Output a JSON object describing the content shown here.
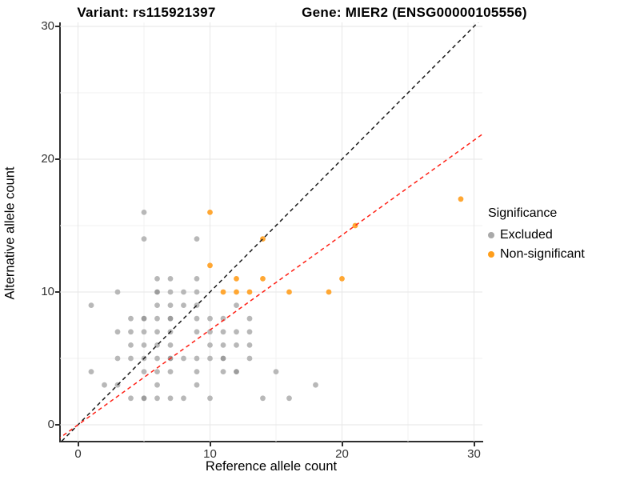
{
  "titles": {
    "left": "Variant: rs115921397",
    "right": "Gene: MIER2 (ENSG00000105556)"
  },
  "chart_data": {
    "type": "scatter",
    "xlabel": "Reference allele count",
    "ylabel": "Alternative allele count",
    "x_ticks": [
      0,
      10,
      20,
      30
    ],
    "x_tick_labels": [
      "0",
      "10",
      "20",
      "30"
    ],
    "y_ticks": [
      0,
      10,
      20,
      30
    ],
    "y_tick_labels": [
      "0",
      "10",
      "20",
      "30"
    ],
    "x_minor_ticks": [
      5,
      15,
      25
    ],
    "y_minor_ticks": [
      5,
      15,
      25
    ],
    "xlim": [
      -1.4,
      30.6
    ],
    "ylim": [
      -1.3,
      30.4
    ],
    "grid": true,
    "legend": {
      "title": "Significance",
      "position": "right",
      "items": [
        {
          "label": "Excluded",
          "color": "#a9a9a9"
        },
        {
          "label": "Non-significant",
          "color": "#ff9e1b"
        }
      ]
    },
    "lines": [
      {
        "name": "identity-line",
        "slope": 1,
        "intercept": 0,
        "style": "dashed",
        "color": "#1a1a1a"
      },
      {
        "name": "expected-ratio-line",
        "slope": 0.7143,
        "intercept": 0,
        "style": "dashed",
        "color": "#ff2015"
      }
    ],
    "series": [
      {
        "name": "Excluded",
        "color": "#b8b8b8",
        "overplot_color": "#9d9d9d",
        "points": [
          [
            1,
            4
          ],
          [
            1,
            9
          ],
          [
            2,
            3
          ],
          [
            3,
            3
          ],
          [
            3,
            5
          ],
          [
            3,
            7
          ],
          [
            3,
            10
          ],
          [
            4,
            2
          ],
          [
            4,
            5
          ],
          [
            4,
            6
          ],
          [
            4,
            7
          ],
          [
            4,
            8
          ],
          [
            5,
            2
          ],
          [
            5,
            4
          ],
          [
            5,
            5
          ],
          [
            5,
            6
          ],
          [
            5,
            7
          ],
          [
            5,
            8
          ],
          [
            5,
            14
          ],
          [
            5,
            16
          ],
          [
            6,
            2
          ],
          [
            6,
            3
          ],
          [
            6,
            4
          ],
          [
            6,
            5
          ],
          [
            6,
            6
          ],
          [
            6,
            7
          ],
          [
            6,
            8
          ],
          [
            6,
            9
          ],
          [
            6,
            10
          ],
          [
            6,
            11
          ],
          [
            7,
            2
          ],
          [
            7,
            4
          ],
          [
            7,
            5
          ],
          [
            7,
            6
          ],
          [
            7,
            7
          ],
          [
            7,
            8
          ],
          [
            7,
            9
          ],
          [
            7,
            10
          ],
          [
            7,
            11
          ],
          [
            8,
            2
          ],
          [
            8,
            5
          ],
          [
            8,
            9
          ],
          [
            8,
            10
          ],
          [
            9,
            3
          ],
          [
            9,
            4
          ],
          [
            9,
            5
          ],
          [
            9,
            7
          ],
          [
            9,
            8
          ],
          [
            9,
            9
          ],
          [
            9,
            10
          ],
          [
            9,
            11
          ],
          [
            9,
            14
          ],
          [
            10,
            2
          ],
          [
            10,
            5
          ],
          [
            10,
            6
          ],
          [
            10,
            7
          ],
          [
            10,
            8
          ],
          [
            11,
            4
          ],
          [
            11,
            5
          ],
          [
            11,
            6
          ],
          [
            11,
            7
          ],
          [
            11,
            8
          ],
          [
            12,
            4
          ],
          [
            12,
            6
          ],
          [
            12,
            7
          ],
          [
            12,
            9
          ],
          [
            13,
            5
          ],
          [
            13,
            6
          ],
          [
            13,
            7
          ],
          [
            13,
            8
          ],
          [
            14,
            2
          ],
          [
            15,
            4
          ],
          [
            16,
            2
          ],
          [
            18,
            3
          ]
        ],
        "overplotted_points": [
          [
            5,
            2
          ],
          [
            7,
            5
          ],
          [
            11,
            5
          ],
          [
            5,
            8
          ],
          [
            7,
            8
          ],
          [
            6,
            10
          ],
          [
            12,
            4
          ]
        ]
      },
      {
        "name": "Non-significant",
        "color": "#ffa733",
        "points": [
          [
            10,
            12
          ],
          [
            10,
            16
          ],
          [
            11,
            10
          ],
          [
            12,
            10
          ],
          [
            13,
            10
          ],
          [
            12,
            11
          ],
          [
            14,
            11
          ],
          [
            14,
            14
          ],
          [
            16,
            10
          ],
          [
            19,
            10
          ],
          [
            20,
            11
          ],
          [
            21,
            15
          ],
          [
            29,
            17
          ]
        ]
      }
    ],
    "colors": {
      "grid_major": "#e6e6e6",
      "grid_minor": "#f1f1f1",
      "axis_line": "#2e2e2e",
      "tick_text": "#333333",
      "title_text": "#000000"
    }
  }
}
